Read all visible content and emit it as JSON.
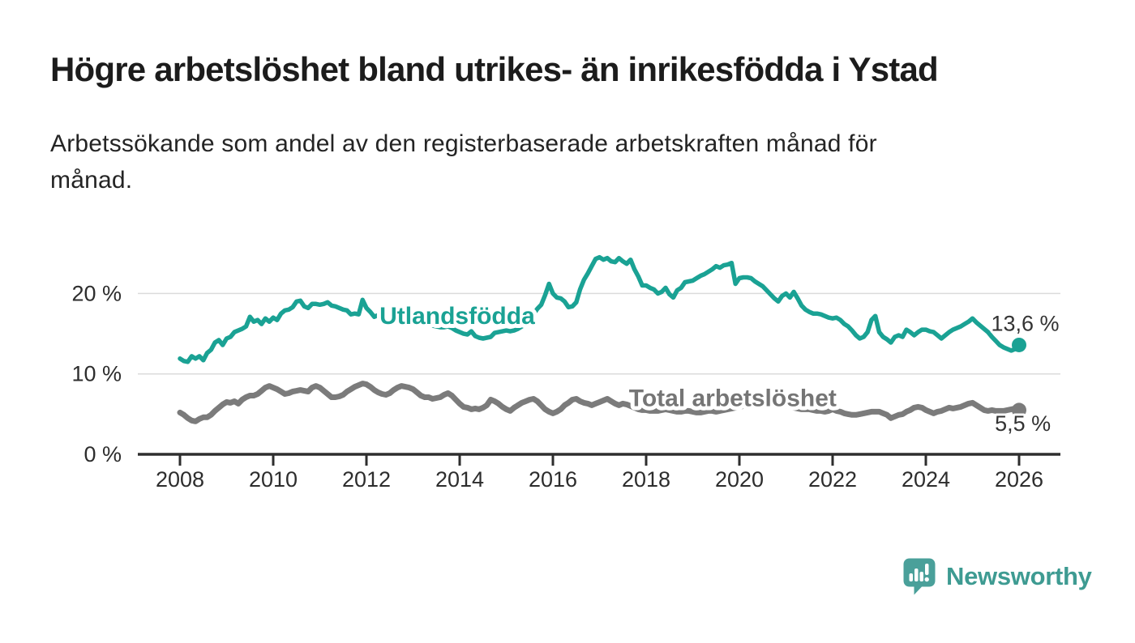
{
  "header": {
    "title": "Högre arbetslöshet bland utrikes- än inrikesfödda i Ystad",
    "subtitle_lines": [
      "Arbetssökande som andel av den registerbaserade arbetskraften månad för",
      "månad."
    ]
  },
  "footer": {
    "brand": "Newsworthy",
    "logo_icon": "speech-bubble-with-bar-chart-and-exclamation"
  },
  "colors": {
    "series_foreign_born": "#1aa294",
    "series_total": "#7b7b7b",
    "grid": "#dbdbdb",
    "axis": "#2e2e2e",
    "tick_text": "#2d2d2d",
    "title_text": "#1c1c1c",
    "value_text": "#333333",
    "logo": "#3e9b92"
  },
  "chart_data": {
    "type": "line",
    "title": "Högre arbetslöshet bland utrikes- än inrikesfödda i Ystad",
    "xlabel": "",
    "ylabel": "",
    "grid": "horizontal",
    "legend_position": "inline-labels",
    "x_axis": {
      "ticks": [
        2008,
        2010,
        2012,
        2014,
        2016,
        2018,
        2020,
        2022,
        2024,
        2026
      ],
      "tick_labels": [
        "2008",
        "2010",
        "2012",
        "2014",
        "2016",
        "2018",
        "2020",
        "2022",
        "2024",
        "2026"
      ],
      "range": [
        2007.1,
        2026.9
      ]
    },
    "y_axis": {
      "ticks": [
        0,
        10,
        20
      ],
      "tick_labels": [
        "0 %",
        "10 %",
        "20 %"
      ],
      "unit": "percent",
      "range": [
        0,
        26.5
      ]
    },
    "series": [
      {
        "id": "utlandsfodda",
        "name": "Utlandsfödda",
        "color": "#1aa294",
        "start_year": 2008,
        "points_per_year": 12,
        "end_value": 13.6,
        "end_label": "13,6 %",
        "values": [
          11.9,
          11.6,
          11.5,
          12.2,
          11.9,
          12.2,
          11.7,
          12.6,
          13.0,
          13.9,
          14.2,
          13.6,
          14.4,
          14.6,
          15.2,
          15.4,
          15.6,
          15.9,
          17.1,
          16.5,
          16.7,
          16.2,
          16.9,
          16.5,
          17.0,
          16.7,
          17.5,
          17.9,
          18.0,
          18.3,
          19.0,
          19.1,
          18.4,
          18.2,
          18.7,
          18.7,
          18.6,
          18.7,
          18.9,
          18.5,
          18.4,
          18.2,
          18.0,
          17.9,
          17.4,
          17.5,
          17.4,
          19.2,
          18.2,
          17.7,
          17.1,
          17.3,
          17.5,
          17.6,
          17.4,
          17.2,
          17.0,
          16.9,
          16.7,
          16.6,
          16.6,
          16.4,
          16.3,
          16.2,
          16.1,
          16.0,
          15.9,
          15.8,
          15.8,
          15.9,
          15.7,
          15.4,
          15.2,
          15.0,
          14.9,
          15.3,
          14.7,
          14.5,
          14.4,
          14.5,
          14.6,
          15.1,
          15.2,
          15.3,
          15.4,
          15.3,
          15.4,
          15.6,
          15.9,
          16.3,
          16.8,
          17.4,
          18.1,
          18.6,
          19.8,
          21.2,
          20.0,
          19.5,
          19.4,
          19.0,
          18.3,
          18.4,
          18.9,
          20.5,
          21.7,
          22.5,
          23.4,
          24.3,
          24.5,
          24.2,
          24.4,
          24.0,
          23.9,
          24.4,
          24.0,
          23.7,
          24.2,
          23.0,
          22.1,
          21.0,
          21.0,
          20.7,
          20.5,
          20.0,
          20.2,
          20.7,
          19.9,
          19.5,
          20.4,
          20.7,
          21.4,
          21.5,
          21.6,
          21.9,
          22.2,
          22.4,
          22.7,
          23.0,
          23.4,
          23.2,
          23.5,
          23.6,
          23.8,
          21.2,
          21.9,
          22.0,
          22.0,
          21.9,
          21.5,
          21.2,
          20.9,
          20.4,
          19.9,
          19.4,
          19.0,
          19.7,
          20.0,
          19.5,
          20.2,
          19.4,
          18.5,
          18.0,
          17.7,
          17.5,
          17.5,
          17.4,
          17.2,
          17.0,
          16.9,
          17.0,
          16.7,
          16.2,
          15.9,
          15.4,
          14.8,
          14.4,
          14.6,
          15.2,
          16.7,
          17.2,
          15.2,
          14.6,
          14.3,
          13.9,
          14.6,
          14.8,
          14.6,
          15.5,
          15.2,
          14.8,
          15.2,
          15.5,
          15.5,
          15.3,
          15.2,
          14.8,
          14.4,
          14.8,
          15.2,
          15.5,
          15.7,
          15.9,
          16.2,
          16.5,
          16.9,
          16.4,
          16.0,
          15.6,
          15.2,
          14.6,
          14.1,
          13.6,
          13.3,
          13.1,
          12.9,
          13.1,
          13.6
        ]
      },
      {
        "id": "total",
        "name": "Total arbetslöshet",
        "color": "#7b7b7b",
        "start_year": 2008,
        "points_per_year": 12,
        "end_value": 5.5,
        "end_label": "5,5 %",
        "values": [
          5.2,
          4.9,
          4.5,
          4.2,
          4.1,
          4.4,
          4.6,
          4.6,
          4.9,
          5.4,
          5.8,
          6.2,
          6.5,
          6.4,
          6.6,
          6.3,
          6.8,
          7.1,
          7.3,
          7.3,
          7.5,
          7.9,
          8.3,
          8.5,
          8.3,
          8.1,
          7.8,
          7.5,
          7.6,
          7.8,
          7.9,
          8.0,
          7.9,
          7.8,
          8.3,
          8.5,
          8.3,
          7.9,
          7.5,
          7.1,
          7.1,
          7.2,
          7.4,
          7.8,
          8.1,
          8.4,
          8.6,
          8.8,
          8.7,
          8.4,
          8.0,
          7.7,
          7.5,
          7.4,
          7.6,
          8.0,
          8.3,
          8.5,
          8.4,
          8.3,
          8.1,
          7.7,
          7.3,
          7.1,
          7.1,
          6.9,
          7.0,
          7.1,
          7.4,
          7.6,
          7.3,
          6.8,
          6.3,
          5.9,
          5.8,
          5.6,
          5.7,
          5.6,
          5.8,
          6.1,
          6.8,
          6.6,
          6.3,
          5.9,
          5.6,
          5.4,
          5.8,
          6.1,
          6.4,
          6.6,
          6.8,
          6.9,
          6.6,
          6.1,
          5.6,
          5.3,
          5.1,
          5.3,
          5.6,
          6.1,
          6.4,
          6.8,
          6.9,
          6.6,
          6.4,
          6.3,
          6.1,
          6.3,
          6.5,
          6.7,
          6.9,
          6.6,
          6.3,
          6.1,
          6.3,
          6.2,
          6.0,
          5.8,
          5.6,
          5.5,
          5.5,
          5.4,
          5.4,
          5.4,
          5.5,
          5.6,
          5.5,
          5.4,
          5.3,
          5.3,
          5.4,
          5.4,
          5.3,
          5.2,
          5.2,
          5.3,
          5.4,
          5.4,
          5.3,
          5.4,
          5.5,
          5.6,
          5.7,
          5.8,
          5.9,
          6.0,
          6.3,
          6.6,
          6.8,
          6.8,
          6.7,
          6.6,
          6.5,
          6.4,
          6.3,
          6.2,
          6.1,
          6.0,
          5.8,
          5.7,
          5.6,
          5.6,
          5.6,
          5.5,
          5.4,
          5.4,
          5.3,
          5.4,
          5.6,
          5.4,
          5.3,
          5.1,
          5.0,
          4.9,
          4.9,
          5.0,
          5.1,
          5.2,
          5.3,
          5.3,
          5.3,
          5.1,
          4.9,
          4.5,
          4.7,
          4.9,
          5.0,
          5.3,
          5.5,
          5.8,
          5.9,
          5.8,
          5.5,
          5.3,
          5.1,
          5.3,
          5.4,
          5.6,
          5.8,
          5.7,
          5.8,
          5.9,
          6.1,
          6.3,
          6.4,
          6.1,
          5.8,
          5.5,
          5.4,
          5.5,
          5.4,
          5.4,
          5.4,
          5.5,
          5.6,
          5.7,
          5.5
        ]
      }
    ],
    "annotations": [
      {
        "id": "label-utlandsfodda",
        "kind": "series-label",
        "text": "Utlandsfödda",
        "year": 2012.28,
        "pct": 16.2,
        "color": "#1aa294"
      },
      {
        "id": "label-total",
        "kind": "series-label",
        "text": "Total arbetslöshet",
        "year": 2017.63,
        "pct": 6.0,
        "color": "#757575"
      },
      {
        "id": "value-utlandsfodda",
        "kind": "value-label",
        "text": "13,6 %",
        "year": 2025.4,
        "pct": 15.35,
        "color": "#333333"
      },
      {
        "id": "value-total",
        "kind": "value-label",
        "text": "5,5 %",
        "year": 2025.48,
        "pct": 2.9,
        "color": "#333333"
      }
    ]
  }
}
